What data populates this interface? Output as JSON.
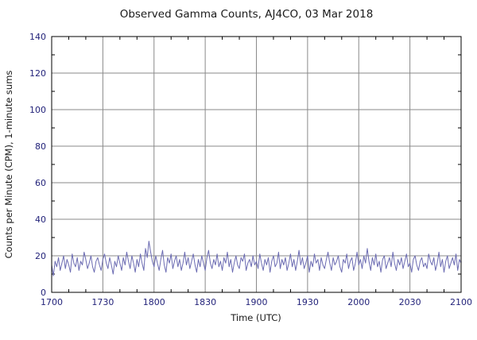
{
  "chart_data": {
    "type": "line",
    "title": "Observed Gamma Counts, AJ4CO, 03 Mar 2018",
    "xlabel": "Time (UTC)",
    "ylabel": "Counts per Minute (CPM), 1-minute sums",
    "xtick_labels": [
      "1700",
      "1730",
      "1800",
      "1830",
      "1900",
      "1930",
      "2000",
      "2030",
      "2100"
    ],
    "ytick_values": [
      0,
      20,
      40,
      60,
      80,
      100,
      120,
      140
    ],
    "ylim": [
      0,
      140
    ],
    "x_minutes_span": 240,
    "grid": true,
    "legend": "none",
    "line_color": "#6b6bb2",
    "grid_color": "#8a8a8a",
    "border_color": "#000000",
    "tick_label_color": "#23237a",
    "values": [
      15,
      9,
      17,
      14,
      19,
      12,
      16,
      20,
      13,
      18,
      15,
      11,
      21,
      16,
      14,
      19,
      12,
      17,
      15,
      22,
      18,
      13,
      16,
      20,
      14,
      11,
      17,
      19,
      15,
      12,
      18,
      21,
      16,
      13,
      19,
      15,
      10,
      17,
      14,
      20,
      16,
      12,
      19,
      15,
      22,
      17,
      13,
      20,
      16,
      11,
      18,
      14,
      21,
      16,
      12,
      24,
      19,
      28,
      22,
      17,
      14,
      20,
      16,
      12,
      18,
      23,
      15,
      11,
      19,
      16,
      21,
      13,
      17,
      20,
      14,
      18,
      12,
      16,
      22,
      15,
      19,
      13,
      17,
      21,
      15,
      11,
      18,
      14,
      20,
      16,
      12,
      19,
      23,
      16,
      13,
      18,
      15,
      21,
      14,
      17,
      12,
      19,
      16,
      22,
      14,
      18,
      11,
      16,
      20,
      15,
      13,
      19,
      17,
      21,
      12,
      16,
      18,
      14,
      20,
      15,
      17,
      13,
      21,
      16,
      12,
      18,
      15,
      19,
      11,
      17,
      20,
      14,
      16,
      22,
      13,
      18,
      15,
      19,
      12,
      16,
      21,
      14,
      18,
      12,
      17,
      23,
      15,
      19,
      13,
      16,
      20,
      11,
      17,
      14,
      21,
      16,
      18,
      12,
      19,
      15,
      13,
      18,
      22,
      16,
      12,
      19,
      15,
      17,
      20,
      14,
      11,
      18,
      16,
      21,
      13,
      17,
      19,
      12,
      16,
      22,
      15,
      18,
      13,
      20,
      16,
      24,
      17,
      12,
      19,
      15,
      21,
      14,
      17,
      11,
      18,
      20,
      13,
      16,
      19,
      14,
      22,
      16,
      12,
      18,
      15,
      19,
      13,
      17,
      21,
      14,
      16,
      11,
      18,
      20,
      15,
      12,
      17,
      19,
      14,
      16,
      13,
      21,
      17,
      15,
      19,
      12,
      16,
      22,
      14,
      18,
      11,
      17,
      20,
      13,
      16,
      19,
      15,
      21,
      12,
      18,
      16
    ]
  }
}
